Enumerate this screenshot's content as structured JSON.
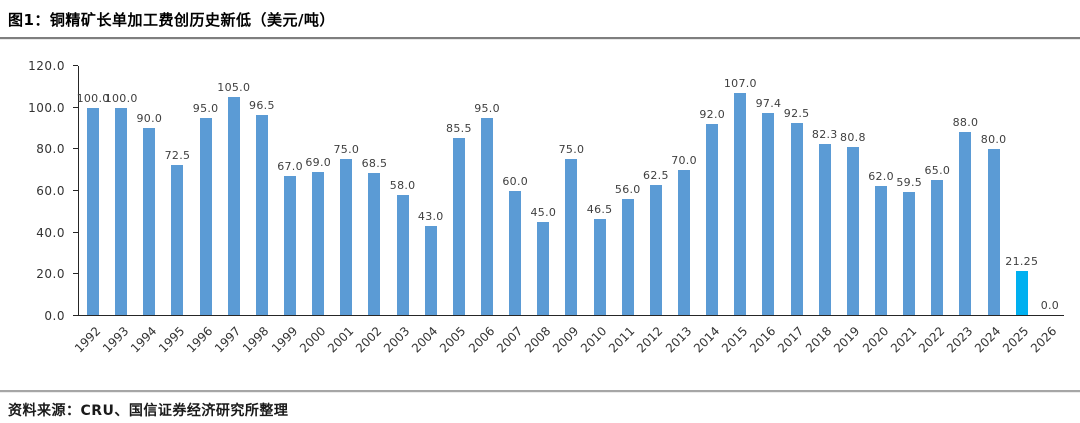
{
  "header": {
    "title": "图1：铜精矿长单加工费创历史新低（美元/吨）"
  },
  "footer": {
    "source": "资料来源：CRU、国信证券经济研究所整理"
  },
  "chart_data": {
    "type": "bar",
    "title": "铜精矿长单加工费创历史新低（美元/吨）",
    "xlabel": "",
    "ylabel": "",
    "categories": [
      "1992",
      "1993",
      "1994",
      "1995",
      "1996",
      "1997",
      "1998",
      "1999",
      "2000",
      "2001",
      "2002",
      "2003",
      "2004",
      "2005",
      "2006",
      "2007",
      "2008",
      "2009",
      "2010",
      "2011",
      "2012",
      "2013",
      "2014",
      "2015",
      "2016",
      "2017",
      "2018",
      "2019",
      "2020",
      "2021",
      "2022",
      "2023",
      "2024",
      "2025",
      "2026"
    ],
    "values": [
      100.0,
      100.0,
      90.0,
      72.5,
      95.0,
      105.0,
      96.5,
      67.0,
      69.0,
      75.0,
      68.5,
      58.0,
      43.0,
      85.5,
      95.0,
      60.0,
      45.0,
      75.0,
      46.5,
      56.0,
      62.5,
      70.0,
      92.0,
      107.0,
      97.4,
      92.5,
      82.3,
      80.8,
      62.0,
      59.5,
      65.0,
      88.0,
      80.0,
      21.25,
      0.0
    ],
    "labels": [
      "100.0",
      "100.0",
      "90.0",
      "72.5",
      "95.0",
      "105.0",
      "96.5",
      "67.0",
      "69.0",
      "75.0",
      "68.5",
      "58.0",
      "43.0",
      "85.5",
      "95.0",
      "60.0",
      "45.0",
      "75.0",
      "46.5",
      "56.0",
      "62.5",
      "70.0",
      "92.0",
      "107.0",
      "97.4",
      "92.5",
      "82.3",
      "80.8",
      "62.0",
      "59.5",
      "65.0",
      "88.0",
      "80.0",
      "21.25",
      "0.0"
    ],
    "ylim": [
      0,
      120
    ],
    "yticks": [
      "0.0",
      "20.0",
      "40.0",
      "60.0",
      "80.0",
      "100.0",
      "120.0"
    ],
    "grid": false,
    "legend": null,
    "bar_color": "#5B9BD5",
    "highlight_index": 33,
    "highlight_color": "#00B0F0",
    "axis_color": "#262626"
  }
}
